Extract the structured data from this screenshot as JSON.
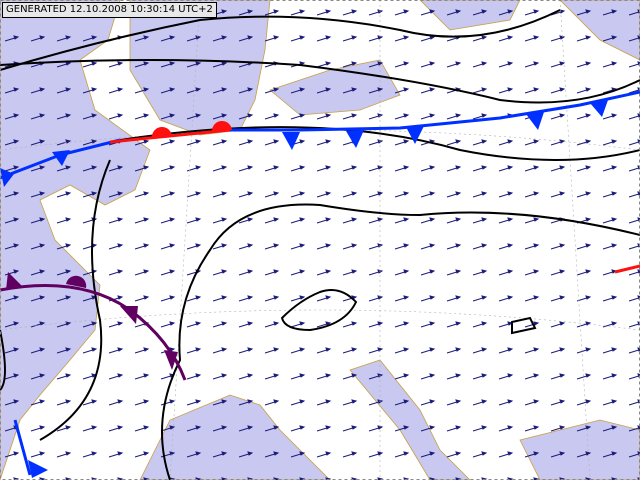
{
  "header": {
    "generated": "GENERATED 12.10.2008 10:30:14 UTC+2"
  }
}
